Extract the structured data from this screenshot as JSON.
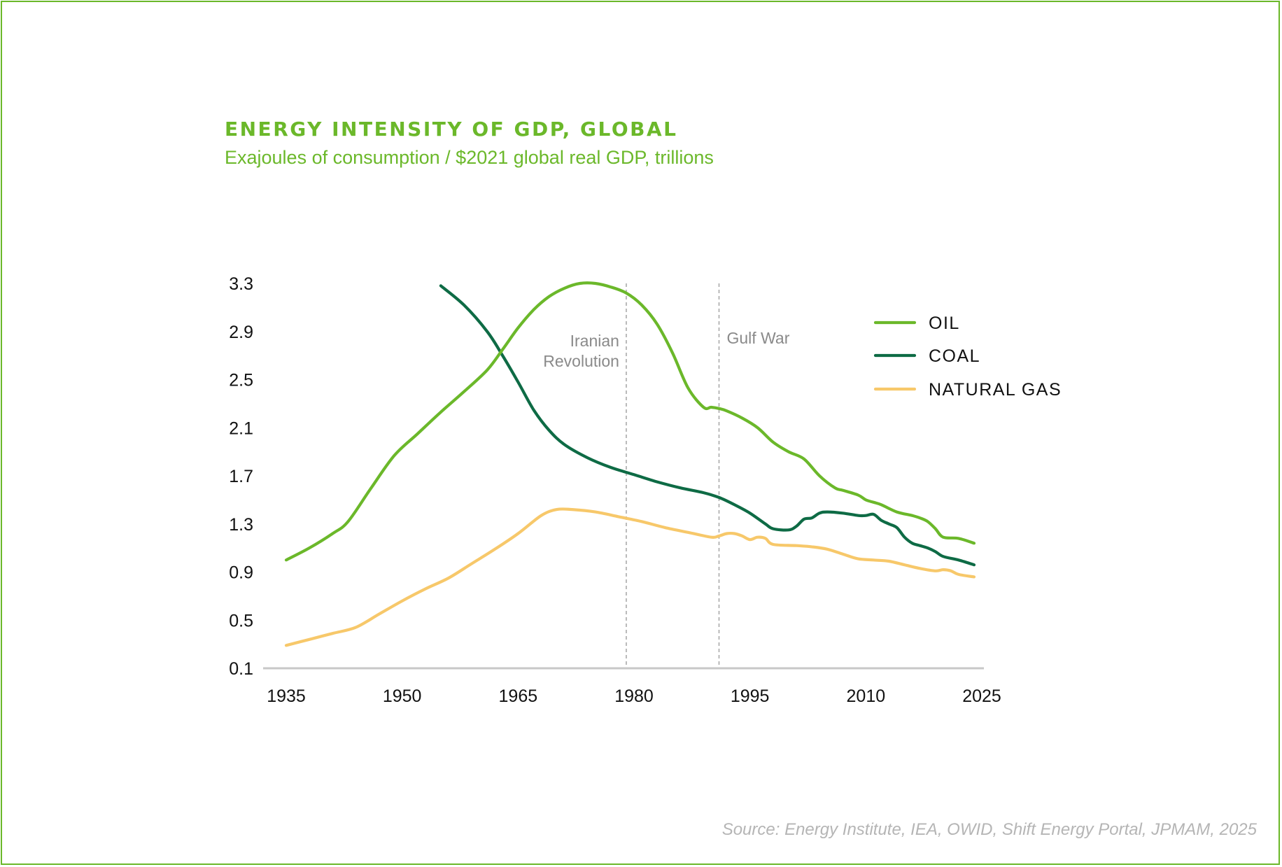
{
  "title": "ENERGY INTENSITY OF GDP, GLOBAL",
  "subtitle": "Exajoules of consumption / $2021 global real GDP, trillions",
  "source": "Source: Energy Institute, IEA, OWID, Shift Energy Portal, JPMAM, 2025",
  "colors": {
    "oil": "#6bb82a",
    "coal": "#0e6b45",
    "natural_gas": "#f7c86a",
    "axis": "#c8c8c8",
    "event_line": "#aaaaaa",
    "accent": "#6bb82a"
  },
  "chart_data": {
    "type": "line",
    "title": "ENERGY INTENSITY OF GDP, GLOBAL",
    "ylabel": "Exajoules of consumption / $2021 global real GDP, trillions",
    "xlabel": "",
    "xlim": [
      1935,
      2025
    ],
    "ylim": [
      0.1,
      3.3
    ],
    "xticks": [
      "1935",
      "1950",
      "1965",
      "1980",
      "1995",
      "2010",
      "2025"
    ],
    "yticks": [
      "3.3",
      "2.9",
      "2.5",
      "2.1",
      "1.7",
      "1.3",
      "0.9",
      "0.5",
      "0.1"
    ],
    "legend_position": "top-right",
    "annotations": [
      {
        "x": 1979,
        "text_lines": [
          "Iranian",
          "Revolution"
        ],
        "side": "left"
      },
      {
        "x": 1991,
        "text_lines": [
          "Gulf War"
        ],
        "side": "right"
      }
    ],
    "series": [
      {
        "key": "oil",
        "name": "OIL",
        "x": [
          1935,
          1938,
          1941,
          1943,
          1946,
          1949,
          1952,
          1955,
          1958,
          1961,
          1963,
          1965,
          1967,
          1969,
          1971,
          1973,
          1975,
          1977,
          1979,
          1981,
          1983,
          1985,
          1987,
          1989,
          1990,
          1991,
          1992,
          1994,
          1996,
          1998,
          2000,
          2002,
          2004,
          2006,
          2007,
          2009,
          2010,
          2011,
          2012,
          2014,
          2016,
          2017,
          2018,
          2019,
          2020,
          2022,
          2024
        ],
        "y": [
          1.0,
          1.1,
          1.22,
          1.32,
          1.6,
          1.87,
          2.05,
          2.23,
          2.4,
          2.58,
          2.75,
          2.93,
          3.08,
          3.19,
          3.26,
          3.3,
          3.3,
          3.27,
          3.22,
          3.12,
          2.96,
          2.72,
          2.43,
          2.27,
          2.27,
          2.26,
          2.24,
          2.18,
          2.1,
          1.98,
          1.9,
          1.84,
          1.7,
          1.6,
          1.58,
          1.54,
          1.5,
          1.48,
          1.46,
          1.4,
          1.37,
          1.35,
          1.32,
          1.26,
          1.19,
          1.18,
          1.14
        ]
      },
      {
        "key": "coal",
        "name": "COAL",
        "x": [
          1955,
          1958,
          1961,
          1963,
          1965,
          1967,
          1969,
          1971,
          1974,
          1977,
          1980,
          1983,
          1986,
          1989,
          1991,
          1993,
          1995,
          1997,
          1998,
          2000,
          2001,
          2002,
          2003,
          2004,
          2005,
          2007,
          2009,
          2010,
          2011,
          2012,
          2013,
          2014,
          2015,
          2016,
          2017,
          2018,
          2019,
          2020,
          2022,
          2024
        ],
        "y": [
          3.28,
          3.12,
          2.9,
          2.7,
          2.48,
          2.25,
          2.08,
          1.96,
          1.85,
          1.77,
          1.71,
          1.65,
          1.6,
          1.56,
          1.52,
          1.46,
          1.39,
          1.3,
          1.26,
          1.25,
          1.28,
          1.34,
          1.35,
          1.39,
          1.4,
          1.39,
          1.37,
          1.37,
          1.38,
          1.33,
          1.3,
          1.27,
          1.19,
          1.14,
          1.12,
          1.1,
          1.07,
          1.03,
          1.0,
          0.96
        ]
      },
      {
        "key": "natural_gas",
        "name": "NATURAL GAS",
        "x": [
          1935,
          1938,
          1941,
          1944,
          1947,
          1950,
          1953,
          1956,
          1959,
          1962,
          1965,
          1968,
          1970,
          1972,
          1975,
          1978,
          1981,
          1984,
          1987,
          1990,
          1991,
          1992,
          1993,
          1994,
          1995,
          1996,
          1997,
          1998,
          2001,
          2003,
          2005,
          2007,
          2009,
          2011,
          2013,
          2015,
          2017,
          2019,
          2020,
          2021,
          2022,
          2024
        ],
        "y": [
          0.29,
          0.34,
          0.39,
          0.44,
          0.55,
          0.66,
          0.76,
          0.85,
          0.97,
          1.09,
          1.22,
          1.37,
          1.42,
          1.42,
          1.4,
          1.36,
          1.32,
          1.27,
          1.23,
          1.19,
          1.2,
          1.22,
          1.22,
          1.2,
          1.17,
          1.19,
          1.18,
          1.13,
          1.12,
          1.11,
          1.09,
          1.05,
          1.01,
          1.0,
          0.99,
          0.96,
          0.93,
          0.91,
          0.92,
          0.91,
          0.88,
          0.86
        ]
      }
    ]
  }
}
